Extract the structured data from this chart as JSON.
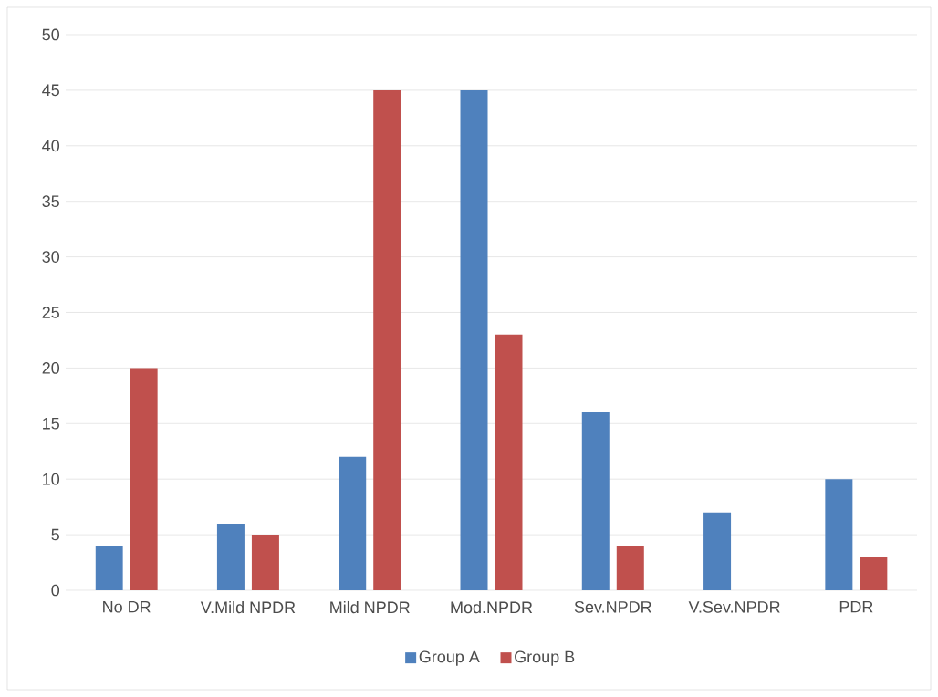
{
  "chart_data": {
    "type": "bar",
    "categories": [
      "No DR",
      "V.Mild NPDR",
      "Mild NPDR",
      "Mod.NPDR",
      "Sev.NPDR",
      "V.Sev.NPDR",
      "PDR"
    ],
    "series": [
      {
        "name": "Group A",
        "color": "#4f81bd",
        "values": [
          4,
          6,
          12,
          45,
          16,
          7,
          10
        ]
      },
      {
        "name": "Group B",
        "color": "#c0504d",
        "values": [
          20,
          5,
          45,
          23,
          4,
          0,
          3
        ]
      }
    ],
    "ylim": [
      0,
      50
    ],
    "yticks": [
      0,
      5,
      10,
      15,
      20,
      25,
      30,
      35,
      40,
      45,
      50
    ],
    "grid": "y",
    "legend": "bottom"
  }
}
